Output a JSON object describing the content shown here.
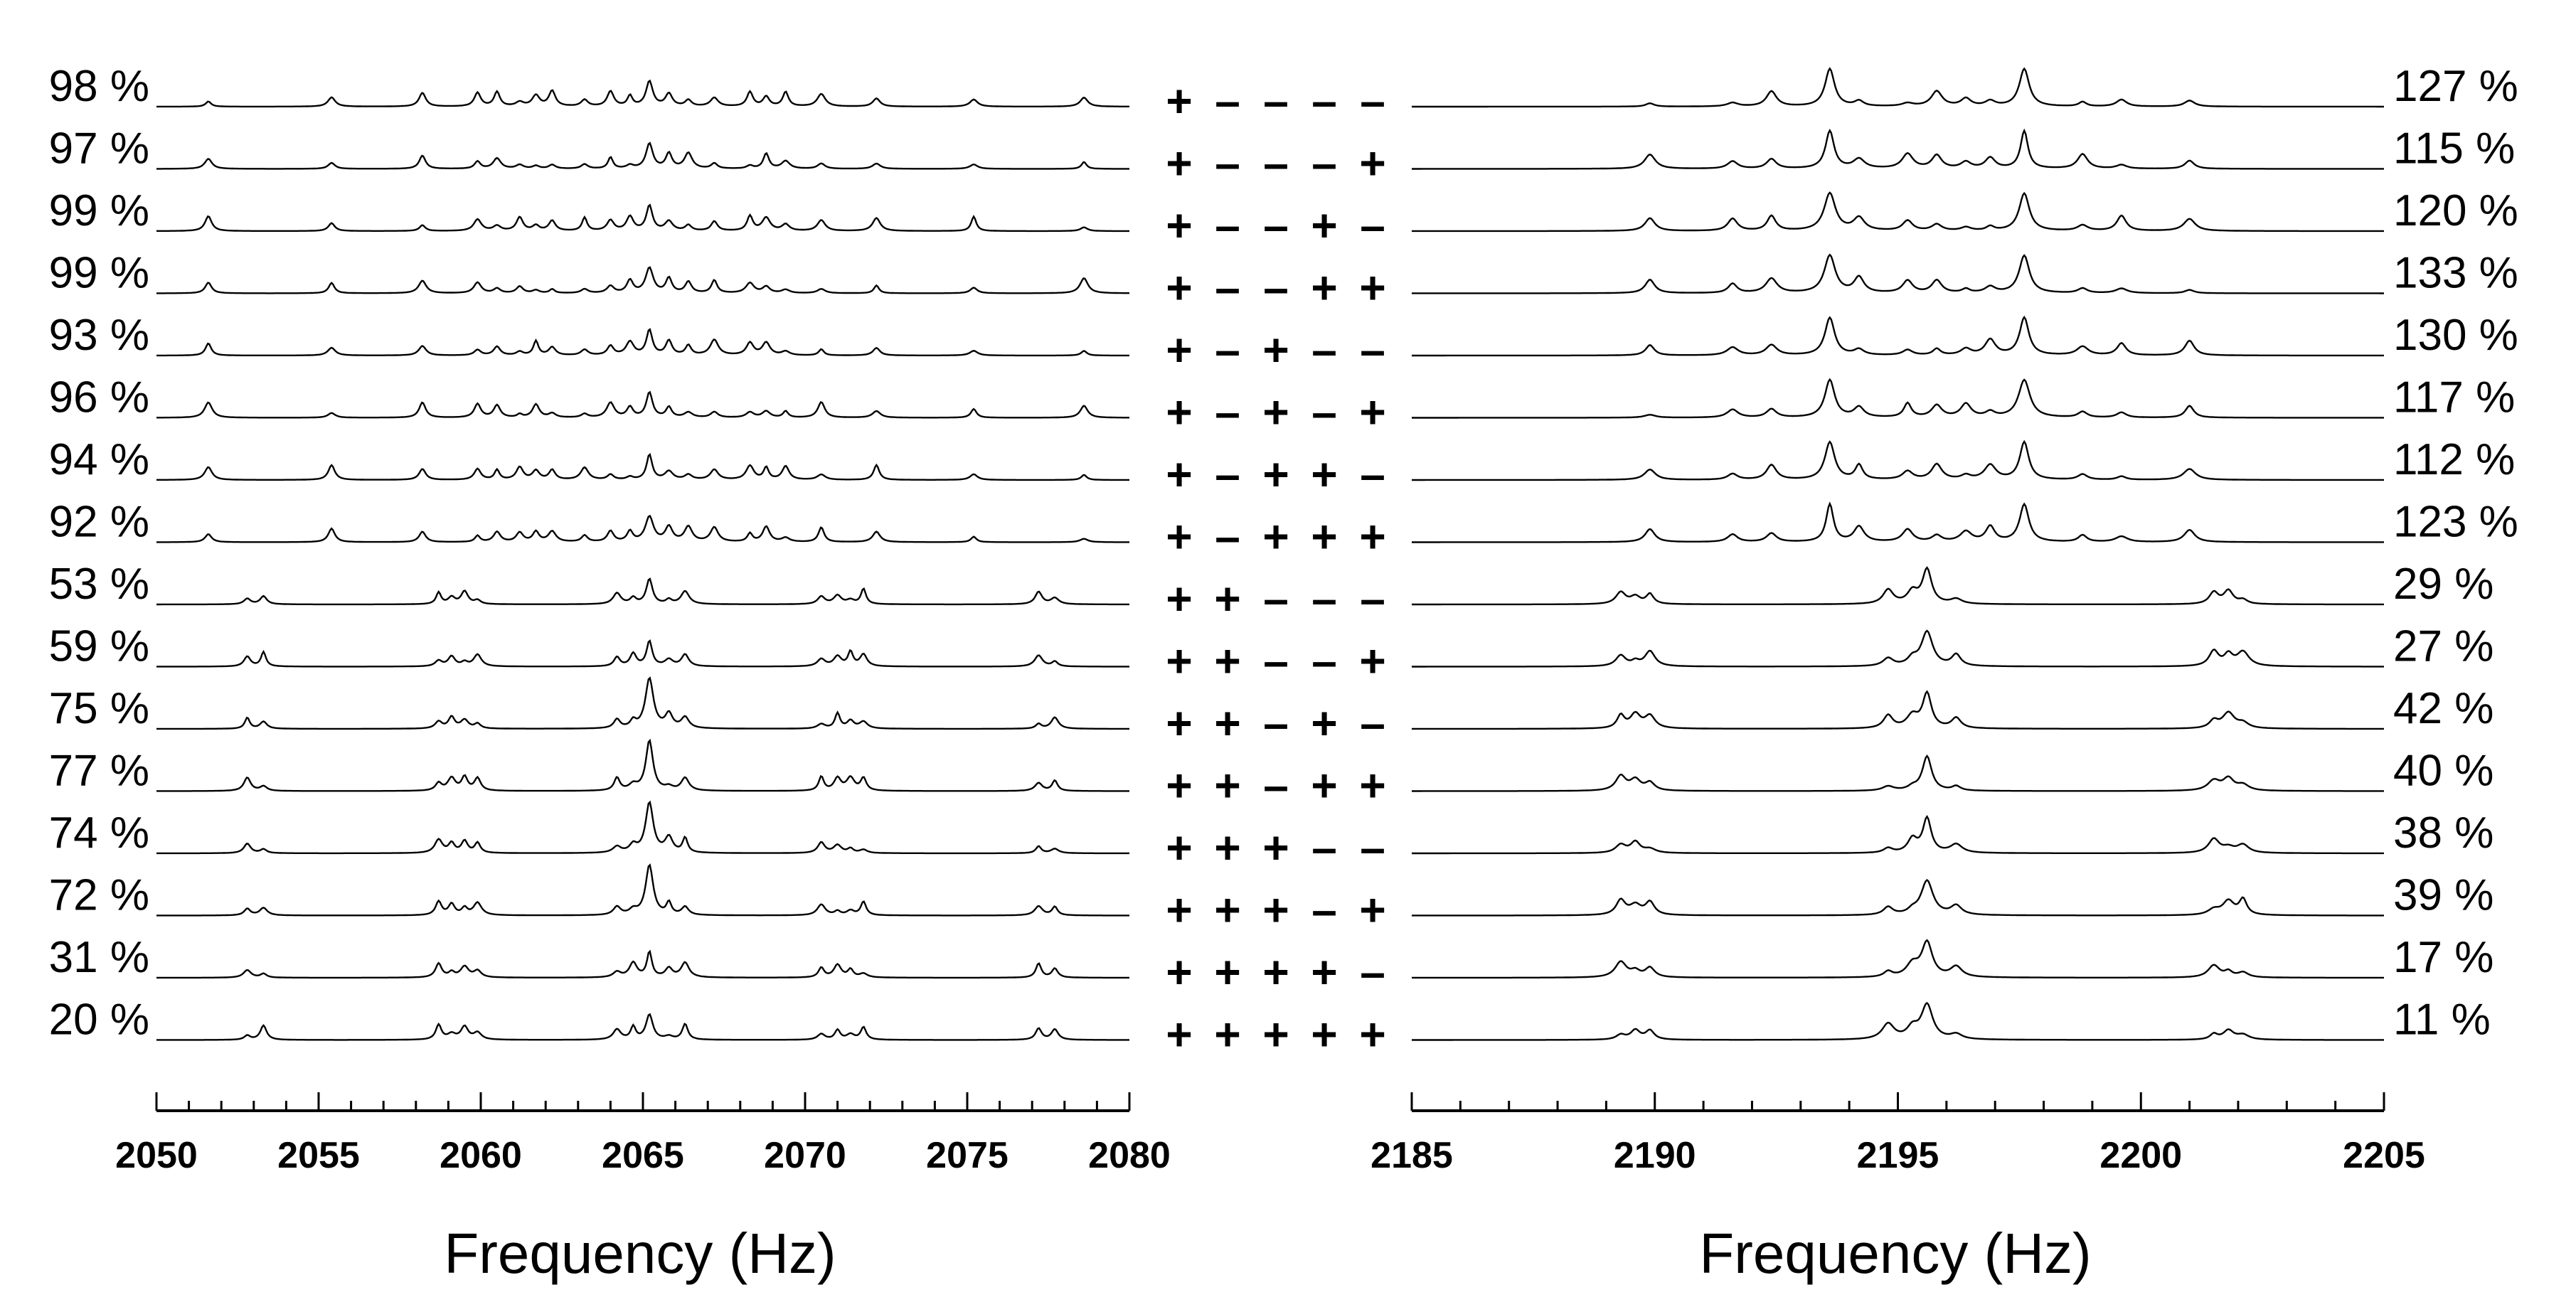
{
  "chart_data": [
    {
      "type": "line",
      "panel": "left",
      "xlabel": "Frequency (Hz)",
      "xlim": [
        2050,
        2080
      ],
      "x_ticks": [
        "2050",
        "2055",
        "2060",
        "2065",
        "2070",
        "2075",
        "2080"
      ],
      "row_labels": [
        "98 %",
        "97 %",
        "99 %",
        "99 %",
        "93 %",
        "96 %",
        "94 %",
        "92 %",
        "53 %",
        "59 %",
        "75 %",
        "77 %",
        "74 %",
        "72 %",
        "31 %",
        "20 %"
      ],
      "spectra_peak_x": {
        "groupA": [
          2051.6,
          2055.4,
          2058.2,
          2059.9,
          2060.5,
          2061.2,
          2061.7,
          2062.2,
          2063.2,
          2064.0,
          2064.6,
          2065.2,
          2065.8,
          2066.4,
          2067.2,
          2068.3,
          2068.8,
          2069.4,
          2070.5,
          2072.2,
          2075.2,
          2078.6
        ],
        "groupB": [
          2052.8,
          2053.3,
          2058.7,
          2059.1,
          2059.5,
          2059.9,
          2064.2,
          2064.7,
          2065.2,
          2065.8,
          2066.3,
          2070.5,
          2071.0,
          2071.4,
          2071.8,
          2077.2,
          2077.7
        ]
      }
    },
    {
      "type": "line",
      "panel": "right",
      "xlabel": "Frequency (Hz)",
      "xlim": [
        2185,
        2205
      ],
      "x_ticks": [
        "2185",
        "2190",
        "2195",
        "2200",
        "2205"
      ],
      "row_labels": [
        "127 %",
        "115 %",
        "120 %",
        "133 %",
        "130 %",
        "117 %",
        "112 %",
        "123 %",
        "29 %",
        "27 %",
        "42 %",
        "40 %",
        "38 %",
        "39 %",
        "17 %",
        "11 %"
      ],
      "spectra_peak_x": {
        "groupA": [
          2189.9,
          2191.6,
          2192.4,
          2193.6,
          2194.2,
          2195.2,
          2195.8,
          2196.4,
          2196.9,
          2197.6,
          2198.8,
          2199.6,
          2201.0
        ],
        "groupB": [
          2189.3,
          2189.6,
          2189.9,
          2194.8,
          2195.3,
          2195.6,
          2196.2,
          2201.5,
          2201.8,
          2202.1
        ]
      }
    }
  ],
  "sign_patterns": [
    [
      "+",
      "–",
      "–",
      "–",
      "–"
    ],
    [
      "+",
      "–",
      "–",
      "–",
      "+"
    ],
    [
      "+",
      "–",
      "–",
      "+",
      "–"
    ],
    [
      "+",
      "–",
      "–",
      "+",
      "+"
    ],
    [
      "+",
      "–",
      "+",
      "–",
      "–"
    ],
    [
      "+",
      "–",
      "+",
      "–",
      "+"
    ],
    [
      "+",
      "–",
      "+",
      "+",
      "–"
    ],
    [
      "+",
      "–",
      "+",
      "+",
      "+"
    ],
    [
      "+",
      "+",
      "–",
      "–",
      "–"
    ],
    [
      "+",
      "+",
      "–",
      "–",
      "+"
    ],
    [
      "+",
      "+",
      "–",
      "+",
      "–"
    ],
    [
      "+",
      "+",
      "–",
      "+",
      "+"
    ],
    [
      "+",
      "+",
      "+",
      "–",
      "–"
    ],
    [
      "+",
      "+",
      "+",
      "–",
      "+"
    ],
    [
      "+",
      "+",
      "+",
      "+",
      "–"
    ],
    [
      "+",
      "+",
      "+",
      "+",
      "+"
    ]
  ],
  "colors": {
    "line": "#000000",
    "background": "#ffffff"
  }
}
